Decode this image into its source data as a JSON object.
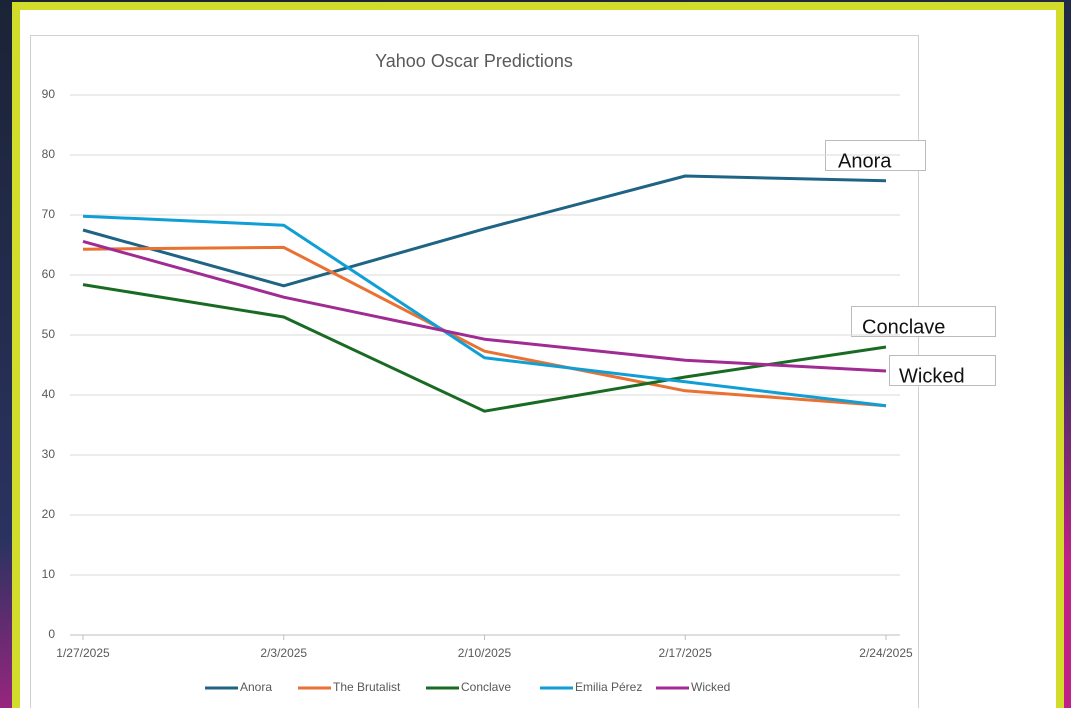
{
  "chart_data": {
    "type": "line",
    "title": "Yahoo Oscar Predictions",
    "categories": [
      "1/27/2025",
      "2/3/2025",
      "2/10/2025",
      "2/17/2025",
      "2/24/2025"
    ],
    "series": [
      {
        "name": "Anora",
        "color": "#1f6385",
        "values": [
          67.5,
          58.2,
          67.7,
          76.5,
          75.7
        ]
      },
      {
        "name": "The Brutalist",
        "color": "#e97132",
        "values": [
          64.3,
          64.6,
          47.3,
          40.7,
          38.2
        ]
      },
      {
        "name": "Conclave",
        "color": "#196b24",
        "values": [
          58.4,
          53.0,
          37.3,
          43.0,
          48.0
        ]
      },
      {
        "name": "Emilia Pérez",
        "color": "#0f9ed5",
        "values": [
          69.8,
          68.3,
          46.2,
          42.2,
          38.2
        ]
      },
      {
        "name": "Wicked",
        "color": "#a02b93",
        "values": [
          65.6,
          56.3,
          49.3,
          45.8,
          44.0
        ]
      }
    ],
    "ylim": [
      0,
      90
    ],
    "yticks": [
      0,
      10,
      20,
      30,
      40,
      50,
      60,
      70,
      80,
      90
    ],
    "grid": true,
    "legend": "bottom",
    "annotations": [
      "Anora",
      "Conclave",
      "Wicked"
    ]
  }
}
